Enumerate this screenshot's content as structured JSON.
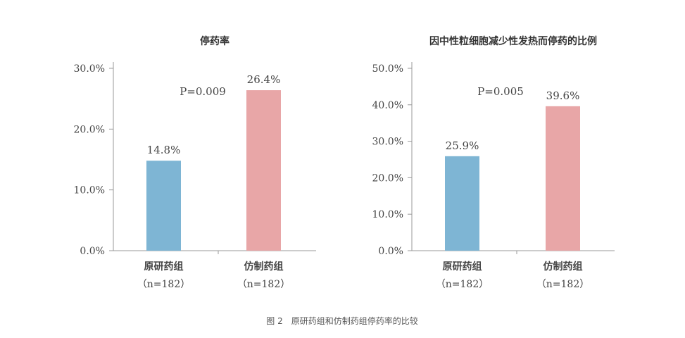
{
  "caption": "图 2　原研药组和仿制药组停药率的比较",
  "colors": {
    "original": "#7eb5d4",
    "generic": "#e8a6a7",
    "axis": "#999999"
  },
  "chart_data": [
    {
      "type": "bar",
      "title": "停药率",
      "categories": [
        "原研药组",
        "仿制药组"
      ],
      "category_sublabels": [
        "（n=182）",
        "（n=182）"
      ],
      "values": [
        14.8,
        26.4
      ],
      "data_labels": [
        "14.8%",
        "26.4%"
      ],
      "ylim": [
        0,
        30
      ],
      "yticks": [
        0,
        10,
        20,
        30
      ],
      "ytick_labels": [
        "0.0%",
        "10.0%",
        "20.0%",
        "30.0%"
      ],
      "annotation": "P=0.009",
      "grid": false
    },
    {
      "type": "bar",
      "title": "因中性粒细胞减少性发热而停药的比例",
      "categories": [
        "原研药组",
        "仿制药组"
      ],
      "category_sublabels": [
        "（n=182）",
        "（n=182）"
      ],
      "values": [
        25.9,
        39.6
      ],
      "data_labels": [
        "25.9%",
        "39.6%"
      ],
      "ylim": [
        0,
        50
      ],
      "yticks": [
        0,
        10,
        20,
        30,
        40,
        50
      ],
      "ytick_labels": [
        "0.0%",
        "10.0%",
        "20.0%",
        "30.0%",
        "40.0%",
        "50.0%"
      ],
      "annotation": "P=0.005",
      "grid": false
    }
  ]
}
